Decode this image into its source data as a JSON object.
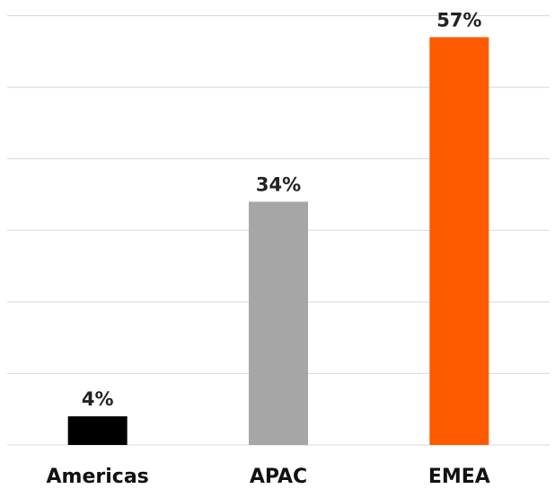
{
  "chart_data": {
    "type": "bar",
    "categories": [
      "Americas",
      "APAC",
      "EMEA"
    ],
    "values": [
      4,
      34,
      57
    ],
    "value_labels": [
      "4%",
      "34%",
      "57%"
    ],
    "colors": [
      "#000000",
      "#a6a6a6",
      "#ff5a00"
    ],
    "title": "",
    "xlabel": "",
    "ylabel": "",
    "ylim": [
      0,
      60
    ],
    "grid": true,
    "legend": "none"
  }
}
